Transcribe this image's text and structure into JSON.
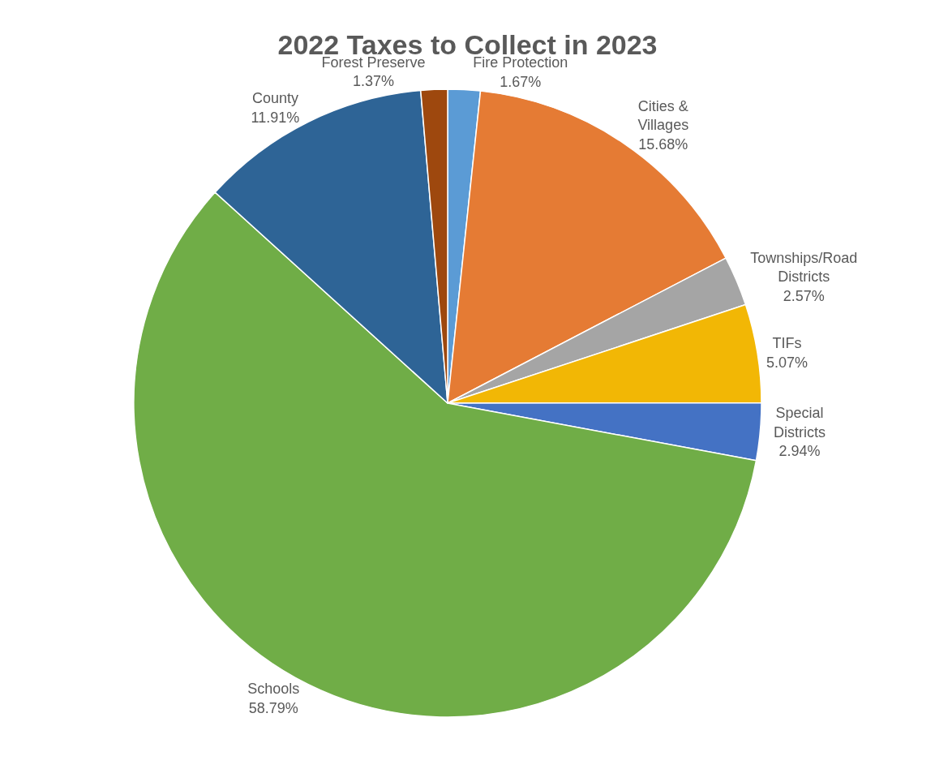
{
  "chart_data": {
    "type": "pie",
    "title": "2022 Taxes to Collect in 2023",
    "categories": [
      "Fire Protection",
      "Cities & Villages",
      "Townships/Road Districts",
      "TIFs",
      "Special Districts",
      "Schools",
      "County",
      "Forest Preserve"
    ],
    "values": [
      1.67,
      15.68,
      2.57,
      5.07,
      2.94,
      58.79,
      11.91,
      1.37
    ],
    "value_labels": [
      "1.67%",
      "15.68%",
      "2.57%",
      "5.07%",
      "2.94%",
      "58.79%",
      "11.91%",
      "1.37%"
    ],
    "colors": [
      "#5b9bd5",
      "#e57b34",
      "#a5a5a5",
      "#f2b705",
      "#4472c4",
      "#70ad47",
      "#2e6496",
      "#9e480e"
    ],
    "legend": false
  }
}
